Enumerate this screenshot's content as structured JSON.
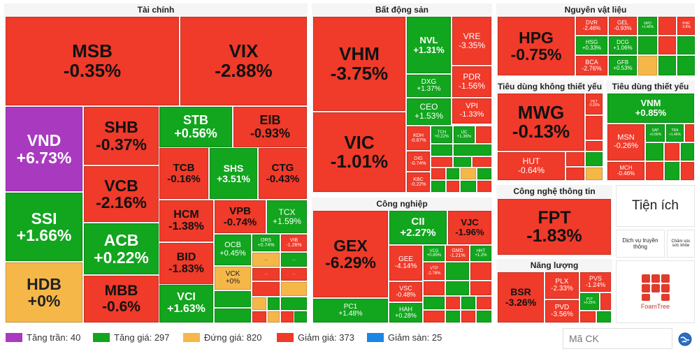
{
  "colors": {
    "ceiling": "#a93ac0",
    "up": "#12a51e",
    "ref": "#f6b749",
    "down": "#f03a2a",
    "floor": "#1a86e6",
    "bg": "#f5f5f5"
  },
  "chart_data": {
    "type": "treemap",
    "sectors": [
      {
        "name": "Tài chính",
        "stocks": [
          {
            "symbol": "MSB",
            "change": "-0.35%",
            "status": "down"
          },
          {
            "symbol": "VIX",
            "change": "-2.88%",
            "status": "down"
          },
          {
            "symbol": "VND",
            "change": "+6.73%",
            "status": "ceiling"
          },
          {
            "symbol": "SSI",
            "change": "+1.66%",
            "status": "up"
          },
          {
            "symbol": "HDB",
            "change": "+0%",
            "status": "ref"
          },
          {
            "symbol": "SHB",
            "change": "-0.37%",
            "status": "down"
          },
          {
            "symbol": "VCB",
            "change": "-2.16%",
            "status": "down"
          },
          {
            "symbol": "ACB",
            "change": "+0.22%",
            "status": "up"
          },
          {
            "symbol": "MBB",
            "change": "-0.6%",
            "status": "down"
          },
          {
            "symbol": "STB",
            "change": "+0.56%",
            "status": "up"
          },
          {
            "symbol": "EIB",
            "change": "-0.93%",
            "status": "down"
          },
          {
            "symbol": "TCB",
            "change": "-0.16%",
            "status": "down"
          },
          {
            "symbol": "SHS",
            "change": "+3.51%",
            "status": "up"
          },
          {
            "symbol": "CTG",
            "change": "-0.43%",
            "status": "down"
          },
          {
            "symbol": "HCM",
            "change": "-1.38%",
            "status": "down"
          },
          {
            "symbol": "BID",
            "change": "-1.83%",
            "status": "down"
          },
          {
            "symbol": "VCI",
            "change": "+1.63%",
            "status": "up"
          },
          {
            "symbol": "VPB",
            "change": "-0.74%",
            "status": "down"
          },
          {
            "symbol": "TCX",
            "change": "+1.59%",
            "status": "up"
          },
          {
            "symbol": "OCB",
            "change": "+0.45%",
            "status": "up"
          },
          {
            "symbol": "ORS",
            "change": "+0.74%",
            "status": "up"
          },
          {
            "symbol": "VIB",
            "change": "-1.26%",
            "status": "down"
          },
          {
            "symbol": "VCK",
            "change": "+0%",
            "status": "ref"
          },
          {
            "symbol": "...",
            "change": "",
            "status": "ref"
          },
          {
            "symbol": "...",
            "change": "",
            "status": "up"
          },
          {
            "symbol": "...",
            "change": "",
            "status": "down"
          },
          {
            "symbol": "...",
            "change": "",
            "status": "down"
          }
        ]
      },
      {
        "name": "Bất động sản",
        "stocks": [
          {
            "symbol": "VHM",
            "change": "-3.75%",
            "status": "down"
          },
          {
            "symbol": "VIC",
            "change": "-1.01%",
            "status": "down"
          },
          {
            "symbol": "NVL",
            "change": "+1.31%",
            "status": "up"
          },
          {
            "symbol": "VRE",
            "change": "-3.35%",
            "status": "down"
          },
          {
            "symbol": "DXG",
            "change": "+1.37%",
            "status": "up"
          },
          {
            "symbol": "PDR",
            "change": "-1.56%",
            "status": "down"
          },
          {
            "symbol": "CEO",
            "change": "+1.53%",
            "status": "up"
          },
          {
            "symbol": "VPI",
            "change": "-1.33%",
            "status": "down"
          },
          {
            "symbol": "KDH",
            "change": "-0.67%",
            "status": "down"
          },
          {
            "symbol": "TCH",
            "change": "+0.22%",
            "status": "up"
          },
          {
            "symbol": "IJC",
            "change": "+1.36%",
            "status": "up"
          },
          {
            "symbol": "DIG",
            "change": "-0.74%",
            "status": "down"
          },
          {
            "symbol": "KBC",
            "change": "-0.22%",
            "status": "down"
          }
        ]
      },
      {
        "name": "Công nghiệp",
        "stocks": [
          {
            "symbol": "GEX",
            "change": "-6.29%",
            "status": "down"
          },
          {
            "symbol": "PC1",
            "change": "+1.48%",
            "status": "up"
          },
          {
            "symbol": "CII",
            "change": "+2.27%",
            "status": "up"
          },
          {
            "symbol": "VJC",
            "change": "-1.96%",
            "status": "down"
          },
          {
            "symbol": "GEE",
            "change": "-4.14%",
            "status": "down"
          },
          {
            "symbol": "VCG",
            "change": "+0.85%",
            "status": "up"
          },
          {
            "symbol": "GMD",
            "change": "-1.21%",
            "status": "down"
          },
          {
            "symbol": "HHT",
            "change": "+1.2%",
            "status": "up"
          },
          {
            "symbol": "VTP",
            "change": "-2.76%",
            "status": "down"
          },
          {
            "symbol": "VSC",
            "change": "-0.48%",
            "status": "down"
          },
          {
            "symbol": "HAH",
            "change": "+0.28%",
            "status": "up"
          }
        ]
      },
      {
        "name": "Nguyên vật liệu",
        "stocks": [
          {
            "symbol": "HPG",
            "change": "-0.75%",
            "status": "down"
          },
          {
            "symbol": "DVR",
            "change": "-2.46%",
            "status": "down"
          },
          {
            "symbol": "GEL",
            "change": "-0.93%",
            "status": "down"
          },
          {
            "symbol": "NPO",
            "change": "+1.46%",
            "status": "up"
          },
          {
            "symbol": "PHR",
            "change": "-3.8%",
            "status": "down"
          },
          {
            "symbol": "HSG",
            "change": "+0.33%",
            "status": "up"
          },
          {
            "symbol": "DCG",
            "change": "+1.06%",
            "status": "up"
          },
          {
            "symbol": "BCA",
            "change": "-2.76%",
            "status": "down"
          },
          {
            "symbol": "GFB",
            "change": "+0.53%",
            "status": "up"
          }
        ]
      },
      {
        "name": "Tiêu dùng không thiết yếu",
        "stocks": [
          {
            "symbol": "MWG",
            "change": "-0.13%",
            "status": "down"
          },
          {
            "symbol": "PET",
            "change": "-0.32%",
            "status": "down"
          },
          {
            "symbol": "HUT",
            "change": "-0.64%",
            "status": "down"
          }
        ]
      },
      {
        "name": "Tiêu dùng thiết yếu",
        "stocks": [
          {
            "symbol": "VNM",
            "change": "+0.85%",
            "status": "up"
          },
          {
            "symbol": "MSN",
            "change": "-0.26%",
            "status": "down"
          },
          {
            "symbol": "SAP",
            "change": "+0.56%",
            "status": "up"
          },
          {
            "symbol": "TRA",
            "change": "+1.46%",
            "status": "up"
          },
          {
            "symbol": "MCH",
            "change": "-0.46%",
            "status": "down"
          }
        ]
      },
      {
        "name": "Công nghệ thông tin",
        "stocks": [
          {
            "symbol": "FPT",
            "change": "-1.83%",
            "status": "down"
          }
        ]
      },
      {
        "name": "Năng lượng",
        "stocks": [
          {
            "symbol": "BSR",
            "change": "-3.26%",
            "status": "down"
          },
          {
            "symbol": "PLX",
            "change": "-2.33%",
            "status": "down"
          },
          {
            "symbol": "PVS",
            "change": "-1.24%",
            "status": "down"
          },
          {
            "symbol": "PVD",
            "change": "-3.56%",
            "status": "down"
          },
          {
            "symbol": "PVT",
            "change": "+0.25%",
            "status": "up"
          }
        ]
      }
    ]
  },
  "panels": {
    "tien_ich": "Tiện ích",
    "dich_vu": "Dịch vụ truyền thông",
    "cham_soc": "Chăm sóc sức khỏe",
    "foamtree": "FoamTree"
  },
  "legend": [
    {
      "label": "Tăng trần: 40",
      "color": "#a93ac0"
    },
    {
      "label": "Tăng giá: 297",
      "color": "#12a51e"
    },
    {
      "label": "Đứng giá: 820",
      "color": "#f6b749"
    },
    {
      "label": "Giảm giá: 373",
      "color": "#f03a2a"
    },
    {
      "label": "Giảm sàn: 25",
      "color": "#1a86e6"
    }
  ],
  "search": {
    "placeholder": "Mã CK"
  }
}
